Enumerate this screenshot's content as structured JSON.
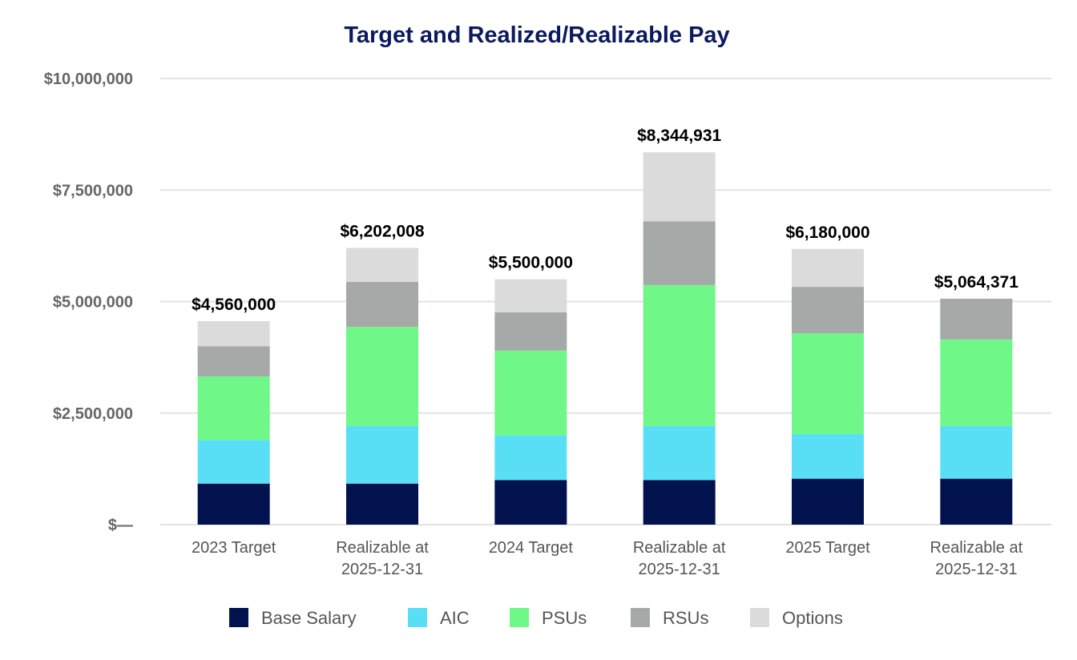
{
  "chart_data": {
    "type": "stacked-bar",
    "title": "Target and Realized/Realizable Pay",
    "xlabel": "",
    "ylabel": "",
    "ylim": [
      0,
      10000000
    ],
    "yticks": [
      0,
      2500000,
      5000000,
      7500000,
      10000000
    ],
    "ytick_labels": [
      "$—",
      "$2,500,000",
      "$5,000,000",
      "$7,500,000",
      "$10,000,000"
    ],
    "grid": true,
    "legend_position": "bottom",
    "categories": [
      [
        "2023 Target"
      ],
      [
        "Realizable at",
        "2025-12-31"
      ],
      [
        "2024 Target"
      ],
      [
        "Realizable at",
        "2025-12-31"
      ],
      [
        "2025 Target"
      ],
      [
        "Realizable at",
        "2025-12-31"
      ]
    ],
    "totals_labels": [
      "$4,560,000",
      "$6,202,008",
      "$5,500,000",
      "$8,344,931",
      "$6,180,000",
      "$5,064,371"
    ],
    "totals": [
      4560000,
      6202008,
      5500000,
      8344931,
      6180000,
      5064371
    ],
    "series": [
      {
        "name": "Base Salary",
        "color": "#02124f",
        "values": [
          920000,
          920000,
          1000000,
          1000000,
          1030000,
          1030000
        ]
      },
      {
        "name": "AIC",
        "color": "#58dff5",
        "values": [
          980000,
          1290000,
          1000000,
          1210000,
          1000000,
          1180000
        ]
      },
      {
        "name": "PSUs",
        "color": "#6ff788",
        "values": [
          1420000,
          2220000,
          1900000,
          3160000,
          2260000,
          1940000
        ]
      },
      {
        "name": "RSUs",
        "color": "#a5aaa8",
        "values": [
          680000,
          1010000,
          860000,
          1430000,
          1040000,
          914371
        ]
      },
      {
        "name": "Options",
        "color": "#dbdbdb",
        "values": [
          560000,
          762008,
          740000,
          1544931,
          850000,
          0
        ]
      }
    ]
  }
}
